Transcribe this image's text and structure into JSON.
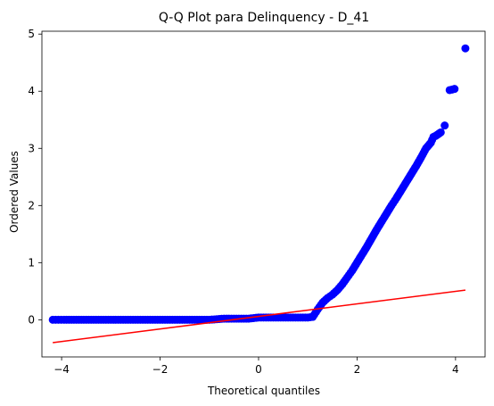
{
  "chart_data": {
    "type": "scatter",
    "title": "Q-Q Plot para Delinquency - D_41",
    "xlabel": "Theoretical quantiles",
    "ylabel": "Ordered Values",
    "xlim": [
      -4.4,
      4.6
    ],
    "ylim": [
      -0.65,
      5.05
    ],
    "xticks": [
      -4,
      -2,
      0,
      2,
      4
    ],
    "xtick_labels": [
      "−4",
      "−2",
      "0",
      "2",
      "4"
    ],
    "yticks": [
      0,
      1,
      2,
      3,
      4,
      5
    ],
    "ytick_labels": [
      "0",
      "1",
      "2",
      "3",
      "4",
      "5"
    ],
    "grid": false,
    "legend": "none",
    "colors": {
      "points": "#0000ff",
      "line": "#ff0000",
      "axes": "#000000"
    },
    "series": [
      {
        "kind": "points",
        "x": [
          -4.18,
          -3.95,
          -3.85,
          -3.7,
          -3.5,
          -3.2,
          -3.0,
          -2.7,
          -2.5,
          -2.2,
          -2.0,
          -1.7,
          -1.5,
          -1.2,
          -1.0,
          -0.7,
          -0.5,
          -0.2,
          0.0,
          0.3,
          0.5,
          0.8,
          1.0,
          1.1,
          1.2,
          1.3,
          1.4,
          1.5,
          1.6,
          1.7,
          1.8,
          1.9,
          2.0,
          2.1,
          2.2,
          2.3,
          2.4,
          2.5,
          2.6,
          2.7,
          2.8,
          2.9,
          3.0,
          3.1,
          3.2,
          3.3,
          3.4,
          3.45,
          3.5,
          3.55,
          3.6,
          3.65,
          3.7,
          3.78,
          3.88,
          3.98,
          4.2
        ],
        "y": [
          0.0,
          0.0,
          0.0,
          0.0,
          0.0,
          0.0,
          0.0,
          0.0,
          0.0,
          0.0,
          0.0,
          0.0,
          0.0,
          0.0,
          0.0,
          0.02,
          0.02,
          0.02,
          0.04,
          0.04,
          0.04,
          0.04,
          0.04,
          0.05,
          0.18,
          0.3,
          0.38,
          0.44,
          0.52,
          0.62,
          0.74,
          0.86,
          1.0,
          1.14,
          1.28,
          1.43,
          1.58,
          1.72,
          1.86,
          2.0,
          2.13,
          2.27,
          2.41,
          2.55,
          2.69,
          2.84,
          3.0,
          3.05,
          3.1,
          3.2,
          3.22,
          3.25,
          3.28,
          3.4,
          4.02,
          4.04,
          4.75
        ]
      },
      {
        "kind": "fit-line",
        "x": [
          -4.18,
          4.2
        ],
        "y": [
          -0.4,
          0.52
        ]
      }
    ]
  }
}
